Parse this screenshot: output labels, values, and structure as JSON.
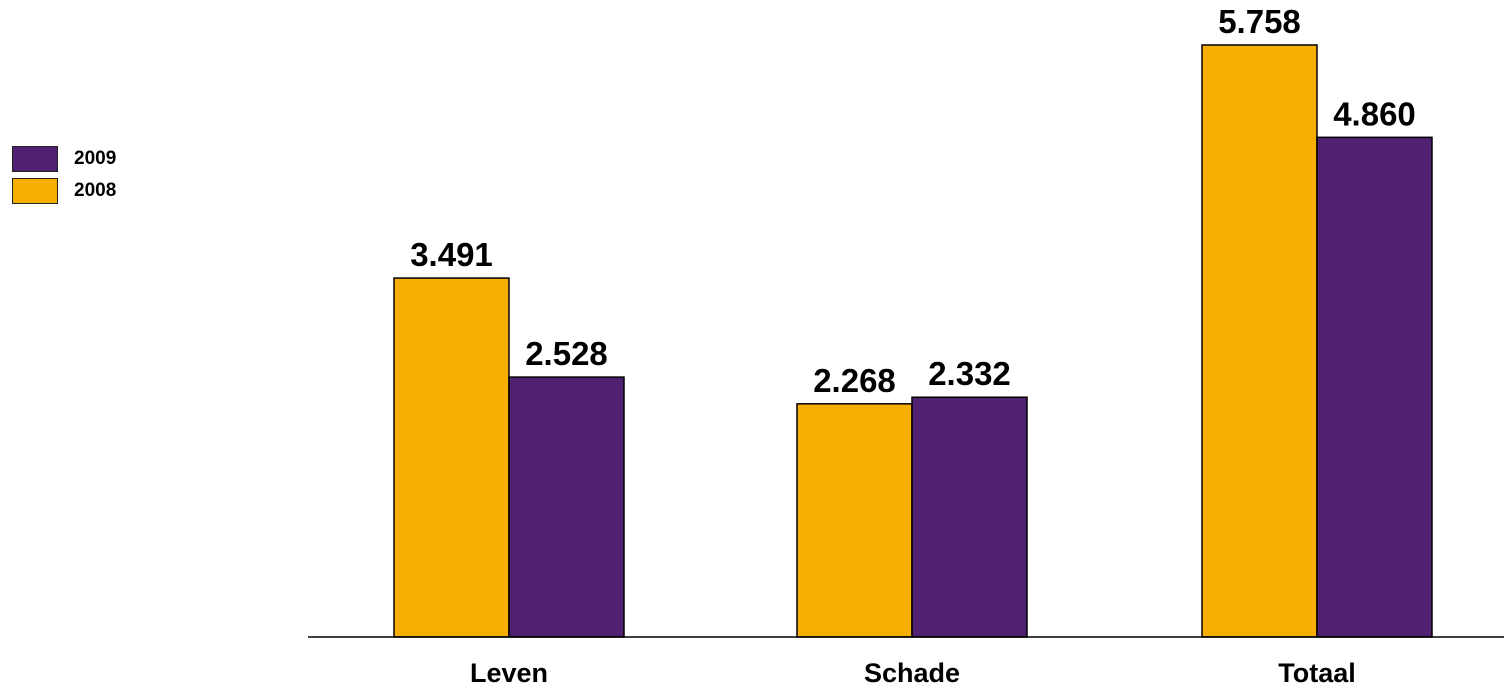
{
  "chart_data": {
    "type": "bar",
    "categories": [
      "Leven",
      "Schade",
      "Totaal"
    ],
    "series": [
      {
        "name": "2008",
        "color": "#F6AE00",
        "values": [
          3491,
          2268,
          5758
        ],
        "labels": [
          "3.491",
          "2.268",
          "5.758"
        ]
      },
      {
        "name": "2009",
        "color": "#4F2170",
        "values": [
          2528,
          2332,
          4860
        ],
        "labels": [
          "2.528",
          "2.332",
          "4.860"
        ]
      }
    ],
    "legend": {
      "position": "left",
      "items": [
        {
          "name": "2009",
          "color": "#4F2170"
        },
        {
          "name": "2008",
          "color": "#F6AE00"
        }
      ]
    },
    "ylim": [
      0,
      6000
    ],
    "grid": false,
    "title": "",
    "xlabel": "",
    "ylabel": ""
  }
}
